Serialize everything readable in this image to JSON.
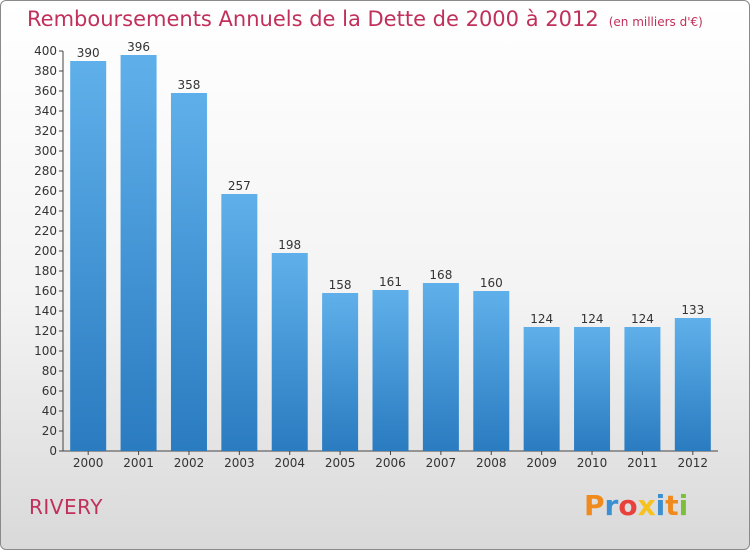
{
  "title": "Remboursements Annuels de la Dette de 2000 à 2012",
  "subtitle": "(en milliers d'€)",
  "commune": "RIVERY",
  "brand": "Proxiti",
  "colors": {
    "title": "#c0305a",
    "bar_light": "#5fb0ea",
    "bar_dark": "#2a7bc0",
    "brand_letters": [
      "#f08a1c",
      "#3c8fd0",
      "#e8403a",
      "#f7c21d",
      "#3c8fd0",
      "#f08a1c",
      "#7bbf3a"
    ]
  },
  "chart_data": {
    "type": "bar",
    "title": "Remboursements Annuels de la Dette de 2000 à 2012",
    "subtitle": "(en milliers d'€)",
    "categories": [
      "2000",
      "2001",
      "2002",
      "2003",
      "2004",
      "2005",
      "2006",
      "2007",
      "2008",
      "2009",
      "2010",
      "2011",
      "2012"
    ],
    "values": [
      390,
      396,
      358,
      257,
      198,
      158,
      161,
      168,
      160,
      124,
      124,
      124,
      133
    ],
    "ylim": [
      0,
      400
    ],
    "yticks": [
      0,
      20,
      40,
      60,
      80,
      100,
      120,
      140,
      160,
      180,
      200,
      220,
      240,
      260,
      280,
      300,
      320,
      340,
      360,
      380,
      400
    ],
    "grid": false,
    "data_labels": true,
    "xlabel": "",
    "ylabel": ""
  }
}
